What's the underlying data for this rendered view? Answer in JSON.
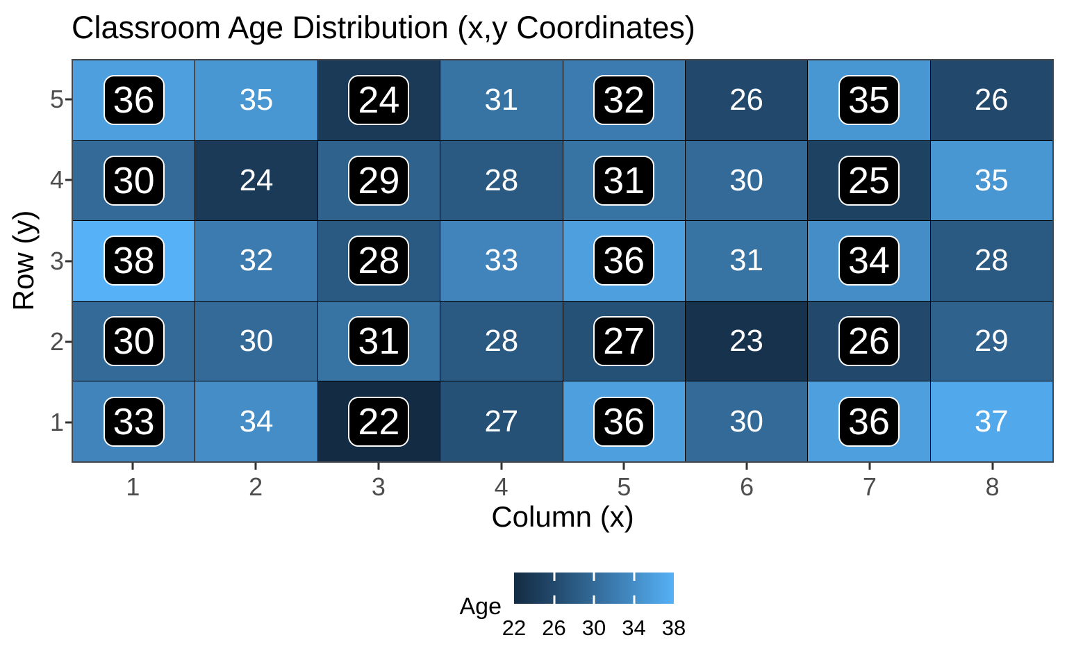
{
  "chart_data": {
    "type": "heatmap",
    "title": "Classroom Age Distribution (x,y Coordinates)",
    "xlabel": "Column (x)",
    "ylabel": "Row (y)",
    "x_ticks": [
      "1",
      "2",
      "3",
      "4",
      "5",
      "6",
      "7",
      "8"
    ],
    "y_ticks": [
      "5",
      "4",
      "3",
      "2",
      "1"
    ],
    "grid_rows_top_to_bottom": [
      {
        "y": 5,
        "values": [
          36,
          35,
          24,
          31,
          32,
          26,
          35,
          26
        ]
      },
      {
        "y": 4,
        "values": [
          30,
          24,
          29,
          28,
          31,
          30,
          25,
          35
        ]
      },
      {
        "y": 3,
        "values": [
          38,
          32,
          28,
          33,
          36,
          31,
          34,
          28
        ]
      },
      {
        "y": 2,
        "values": [
          30,
          30,
          31,
          28,
          27,
          23,
          26,
          29
        ]
      },
      {
        "y": 1,
        "values": [
          33,
          34,
          22,
          27,
          36,
          30,
          36,
          37
        ]
      }
    ],
    "boxed_columns": [
      1,
      3,
      5,
      7
    ],
    "color_scale": {
      "low_value": 22,
      "high_value": 38,
      "low_color": "#132B43",
      "high_color": "#56B1F7"
    },
    "label_box": {
      "fill": "#000000",
      "text_color": "#FFFFFF",
      "border_color": "#FFFFFF"
    },
    "legend": {
      "title": "Age",
      "ticks": [
        22,
        26,
        30,
        34,
        38
      ],
      "position": "bottom"
    },
    "axis_text_color": "#4d4d4d",
    "panel_border_color": "#43474b"
  }
}
